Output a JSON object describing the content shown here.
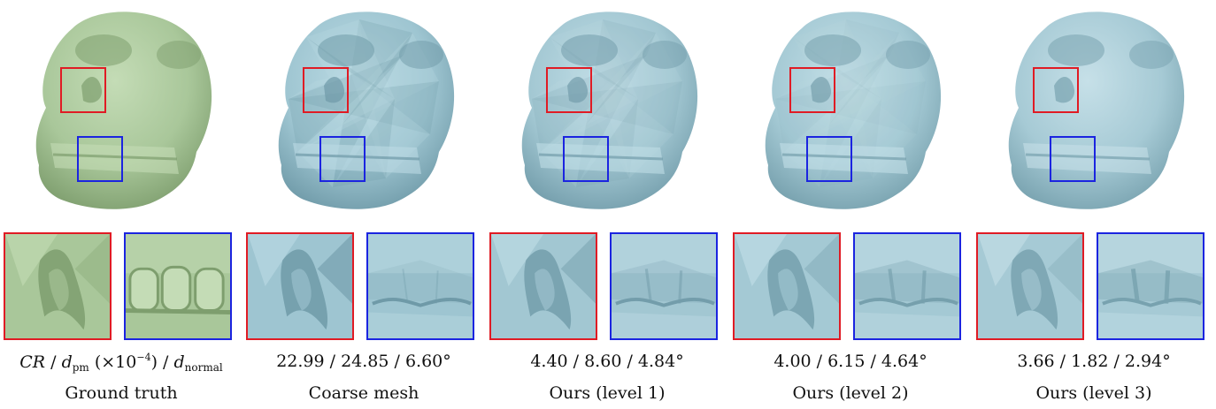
{
  "columns": [
    {
      "id": "gt",
      "caption": "Ground truth",
      "metric": null,
      "fill": "#a9c79a",
      "shade": "#7e9e6e",
      "light": "#c4dcb6"
    },
    {
      "id": "coarse",
      "caption": "Coarse mesh",
      "metric": "22.99 / 24.85 / 6.60°",
      "fill": "#9ec5d1",
      "shade": "#6f9aa8",
      "light": "#bcdbe4"
    },
    {
      "id": "l1",
      "caption": "Ours (level 1)",
      "metric": "4.40 / 8.60 / 4.84°",
      "fill": "#a2c7d2",
      "shade": "#739dab",
      "light": "#c0dde6"
    },
    {
      "id": "l2",
      "caption": "Ours (level 2)",
      "metric": "4.00 / 6.15 / 4.64°",
      "fill": "#a4c9d4",
      "shade": "#76a0ad",
      "light": "#c3dfe7"
    },
    {
      "id": "l3",
      "caption": "Ours (level 3)",
      "metric": "3.66 / 1.82 / 2.94°",
      "fill": "#a6cad5",
      "shade": "#78a2af",
      "light": "#c6e0e8"
    }
  ],
  "header_metric": {
    "cr": "CR",
    "sep1": " / ",
    "d": "d",
    "pm_sub": "pm",
    "scale_open": " (×10",
    "exp": "−4",
    "scale_close": ") / ",
    "d2": "d",
    "normal_sub": "normal"
  },
  "colors": {
    "highlight_red": "#e01b24",
    "highlight_blue": "#1b24e0"
  }
}
